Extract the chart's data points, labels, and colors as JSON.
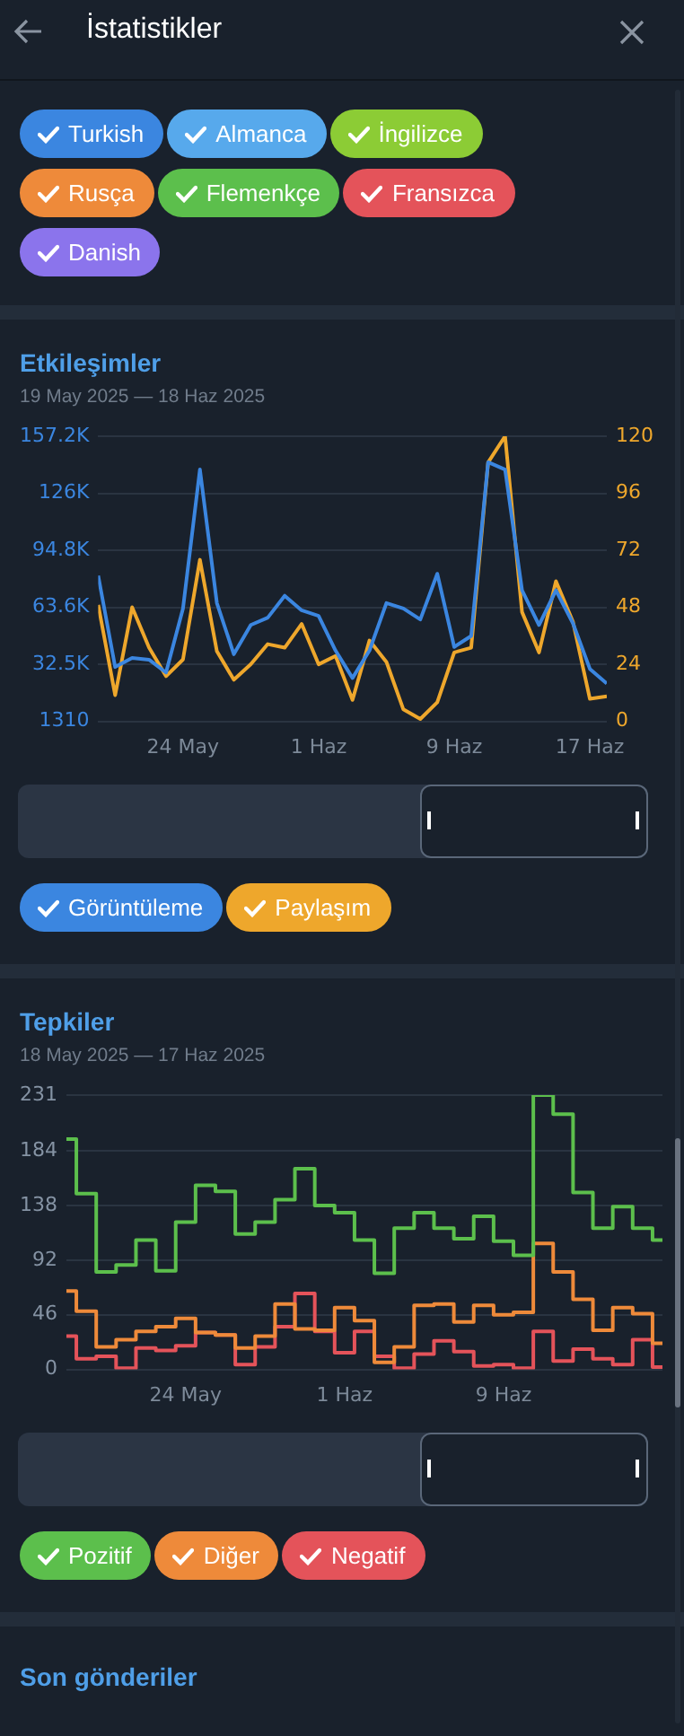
{
  "chart_data": [
    {
      "type": "other",
      "title": "İstatistikler",
      "annotations": [
        "Turkish",
        "Almanca",
        "İngilizce",
        "Rusça",
        "Flemenkçe",
        "Fransızca",
        "Danish"
      ]
    },
    {
      "type": "line",
      "title": "Etkileşimler",
      "subtitle": "19 May 2025 — 18 Haz 2025",
      "x": [
        "2025-05-19",
        "2025-05-20",
        "2025-05-21",
        "2025-05-22",
        "2025-05-23",
        "2025-05-24",
        "2025-05-25",
        "2025-05-26",
        "2025-05-27",
        "2025-05-28",
        "2025-05-29",
        "2025-05-30",
        "2025-05-31",
        "2025-06-01",
        "2025-06-02",
        "2025-06-03",
        "2025-06-04",
        "2025-06-05",
        "2025-06-06",
        "2025-06-07",
        "2025-06-08",
        "2025-06-09",
        "2025-06-10",
        "2025-06-11",
        "2025-06-12",
        "2025-06-13",
        "2025-06-14",
        "2025-06-15",
        "2025-06-16",
        "2025-06-17",
        "2025-06-18"
      ],
      "xlim": [
        "2025-05-19",
        "2025-06-18"
      ],
      "xticks": [
        {
          "value": "2025-05-24",
          "label": "24 May"
        },
        {
          "value": "2025-06-01",
          "label": "1 Haz"
        },
        {
          "value": "2025-06-09",
          "label": "9 Haz"
        },
        {
          "value": "2025-06-17",
          "label": "17 Haz"
        }
      ],
      "ylim": [
        1310,
        157200
      ],
      "yticks": [
        {
          "value": 1310,
          "label": "1310"
        },
        {
          "value": 32500,
          "label": "32.5K"
        },
        {
          "value": 63600,
          "label": "63.6K"
        },
        {
          "value": 94800,
          "label": "94.8K"
        },
        {
          "value": 126000,
          "label": "126K"
        },
        {
          "value": 157200,
          "label": "157.2K"
        }
      ],
      "y2lim": [
        0,
        120
      ],
      "y2ticks": [
        0,
        24,
        48,
        72,
        96,
        120
      ],
      "grid": "y",
      "legend": "bottom",
      "series": [
        {
          "name": "Görüntüleme",
          "color": "#3b86e0",
          "values": [
            81000,
            31000,
            36000,
            35000,
            28000,
            63000,
            139000,
            66000,
            38000,
            54000,
            58000,
            70000,
            62000,
            59000,
            40000,
            25000,
            40000,
            66000,
            63000,
            57000,
            82000,
            42000,
            48000,
            143000,
            139000,
            73000,
            54000,
            73000,
            55000,
            30000,
            22000
          ]
        },
        {
          "name": "Paylaşım",
          "color": "#eea72c",
          "axis": "y2",
          "values": [
            49,
            11,
            48,
            31,
            19,
            26,
            68,
            29.5,
            17.5,
            24,
            32.5,
            31,
            41,
            24,
            27.5,
            9,
            34,
            25,
            5,
            1,
            8,
            29,
            31,
            109,
            120,
            46,
            29,
            59,
            42,
            9.5,
            10.5
          ]
        }
      ]
    },
    {
      "type": "step",
      "title": "Tepkiler",
      "subtitle": "18 May 2025 — 17 Haz 2025",
      "x": [
        "2025-05-18",
        "2025-05-19",
        "2025-05-20",
        "2025-05-21",
        "2025-05-22",
        "2025-05-23",
        "2025-05-24",
        "2025-05-25",
        "2025-05-26",
        "2025-05-27",
        "2025-05-28",
        "2025-05-29",
        "2025-05-30",
        "2025-05-31",
        "2025-06-01",
        "2025-06-02",
        "2025-06-03",
        "2025-06-04",
        "2025-06-05",
        "2025-06-06",
        "2025-06-07",
        "2025-06-08",
        "2025-06-09",
        "2025-06-10",
        "2025-06-11",
        "2025-06-12",
        "2025-06-13",
        "2025-06-14",
        "2025-06-15",
        "2025-06-16",
        "2025-06-17"
      ],
      "xlim": [
        "2025-05-18",
        "2025-06-17"
      ],
      "xticks": [
        {
          "value": "2025-05-24",
          "label": "24 May"
        },
        {
          "value": "2025-06-01",
          "label": "1 Haz"
        },
        {
          "value": "2025-06-09",
          "label": "9 Haz"
        }
      ],
      "ylim": [
        0,
        231
      ],
      "yticks": [
        0,
        46,
        92,
        138,
        184,
        231
      ],
      "grid": "y",
      "legend": "bottom",
      "series": [
        {
          "name": "Pozitif",
          "color": "#5cbf4c",
          "values": [
            194,
            148,
            82,
            88,
            109,
            83,
            124,
            155,
            150,
            114,
            124,
            143,
            169,
            138,
            132,
            109,
            81,
            119,
            132,
            119,
            110,
            129,
            108,
            96,
            231,
            215,
            149,
            119,
            137,
            119,
            109
          ]
        },
        {
          "name": "Diğer",
          "color": "#ee8a3a",
          "values": [
            66,
            49,
            19,
            25,
            32,
            36,
            43,
            31,
            29,
            18,
            28,
            55,
            34,
            33,
            52,
            41,
            6,
            19,
            54,
            55,
            40,
            54,
            46,
            48,
            106,
            82,
            59,
            33,
            52,
            47,
            22
          ]
        },
        {
          "name": "Negatif",
          "color": "#e4535a",
          "values": [
            28,
            9,
            11,
            1,
            18,
            16,
            20,
            31,
            29,
            4,
            19,
            36,
            64,
            32,
            14,
            32,
            11,
            1,
            13,
            24,
            15,
            3,
            4,
            1,
            32,
            7,
            17,
            9,
            4,
            25,
            2
          ]
        }
      ]
    },
    {
      "type": "other",
      "title": "Son gönderiler"
    }
  ]
}
